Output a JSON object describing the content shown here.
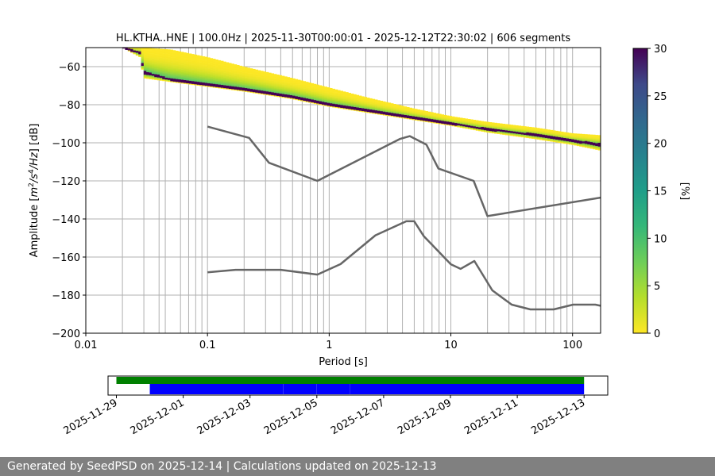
{
  "footer": "Generated by SeedPSD on 2025-12-14 | Calculations updated on 2025-12-13",
  "chart_data": [
    {
      "type": "heatmap",
      "title": "HL.KTHA..HNE | 100.0Hz | 2025-11-30T00:00:01 - 2025-12-12T22:30:02 | 606 segments",
      "xlabel": "Period [s]",
      "ylabel_parts": [
        "Amplitude [",
        "m",
        "2",
        "/",
        "s",
        "4",
        "/",
        "Hz",
        "] [dB]"
      ],
      "x_scale": "log",
      "xlim": [
        0.01,
        170
      ],
      "ylim": [
        -200,
        -50
      ],
      "x_ticks": [
        {
          "value": 0.01,
          "label": "0.01"
        },
        {
          "value": 0.1,
          "label": "0.1"
        },
        {
          "value": 1,
          "label": "1"
        },
        {
          "value": 10,
          "label": "10"
        },
        {
          "value": 100,
          "label": "100"
        }
      ],
      "y_ticks": [
        {
          "value": -60,
          "label": "−60"
        },
        {
          "value": -80,
          "label": "−80"
        },
        {
          "value": -100,
          "label": "−100"
        },
        {
          "value": -120,
          "label": "−120"
        },
        {
          "value": -140,
          "label": "−140"
        },
        {
          "value": -160,
          "label": "−160"
        },
        {
          "value": -180,
          "label": "−180"
        },
        {
          "value": -200,
          "label": "−200"
        }
      ],
      "vertical_grid_periods": [
        0.02,
        0.03,
        0.04,
        0.045,
        0.06,
        0.07,
        0.08,
        0.09,
        0.1,
        0.2,
        0.3,
        0.4,
        0.5,
        0.6,
        0.7,
        0.8,
        0.9,
        1,
        2,
        3,
        4,
        5,
        6,
        7,
        8,
        9,
        10,
        20,
        30,
        40,
        50,
        60,
        70,
        80,
        90,
        100
      ],
      "colorbar": {
        "label": "[%]",
        "range": [
          0,
          30
        ],
        "colormap": "viridis_r",
        "ticks": [
          {
            "value": 0,
            "label": "0"
          },
          {
            "value": 5,
            "label": "5"
          },
          {
            "value": 10,
            "label": "10"
          },
          {
            "value": 15,
            "label": "15"
          },
          {
            "value": 20,
            "label": "20"
          },
          {
            "value": 25,
            "label": "25"
          },
          {
            "value": 30,
            "label": "30"
          }
        ]
      },
      "psd_band": {
        "x": [
          0.02,
          0.028,
          0.03,
          0.05,
          0.1,
          0.2,
          0.5,
          1,
          2,
          5,
          10,
          20,
          50,
          100,
          170
        ],
        "center": [
          -50,
          -53,
          -63,
          -67,
          -69.5,
          -72,
          -76,
          -80,
          -83,
          -87,
          -90,
          -93,
          -96,
          -99,
          -101
        ],
        "upper": [
          -50,
          -49,
          -50,
          -51,
          -55,
          -60,
          -66,
          -71,
          -76,
          -82,
          -86,
          -89,
          -92,
          -95,
          -96
        ],
        "lower": [
          -50,
          -55,
          -66,
          -68,
          -70.5,
          -73,
          -77,
          -81,
          -84,
          -88,
          -91,
          -94.5,
          -98,
          -101,
          -104
        ]
      },
      "series": [
        {
          "color": "#666666",
          "x": [
            0.1,
            0.22,
            0.32,
            0.8,
            3.8,
            4.6,
            6.3,
            7.9,
            15.4,
            20,
            170
          ],
          "y": [
            -91.5,
            -97.4,
            -110.5,
            -120,
            -98,
            -96.5,
            -101,
            -113.5,
            -120,
            -138.5,
            -128.8
          ]
        },
        {
          "color": "#666666",
          "x": [
            0.1,
            0.17,
            0.4,
            0.8,
            1.24,
            2.4,
            4.3,
            5.0,
            6.0,
            10,
            12,
            15.6,
            21.9,
            31.6,
            45,
            70,
            101,
            154,
            170
          ],
          "y": [
            -168,
            -166.7,
            -166.7,
            -169.2,
            -163.7,
            -148.6,
            -141.2,
            -141.2,
            -149.1,
            -163.8,
            -166.2,
            -162.1,
            -177.5,
            -185,
            -187.5,
            -187.5,
            -185,
            -185,
            -185.6
          ]
        }
      ]
    },
    {
      "type": "timeline",
      "x_ticks": [
        {
          "value": "2025-11-29",
          "label": "2025-11-29"
        },
        {
          "value": "2025-12-01",
          "label": "2025-12-01"
        },
        {
          "value": "2025-12-03",
          "label": "2025-12-03"
        },
        {
          "value": "2025-12-05",
          "label": "2025-12-05"
        },
        {
          "value": "2025-12-07",
          "label": "2025-12-07"
        },
        {
          "value": "2025-12-09",
          "label": "2025-12-09"
        },
        {
          "value": "2025-12-11",
          "label": "2025-12-11"
        },
        {
          "value": "2025-12-13",
          "label": "2025-12-13"
        }
      ],
      "xlim": [
        "2025-11-28T18:00",
        "2025-12-13T17:00"
      ],
      "tracks": [
        {
          "color": "#008000",
          "segments": [
            [
              "2025-11-29T00:00",
              "2025-12-13T00:00"
            ]
          ]
        },
        {
          "color": "#0000ff",
          "segments": [
            [
              "2025-11-30T00:00",
              "2025-12-04T00:00"
            ],
            [
              "2025-12-04T00:05",
              "2025-12-05T00:00"
            ],
            [
              "2025-12-05T00:05",
              "2025-12-06T00:00"
            ],
            [
              "2025-12-06T00:05",
              "2025-12-12T23:59"
            ]
          ]
        }
      ]
    }
  ]
}
